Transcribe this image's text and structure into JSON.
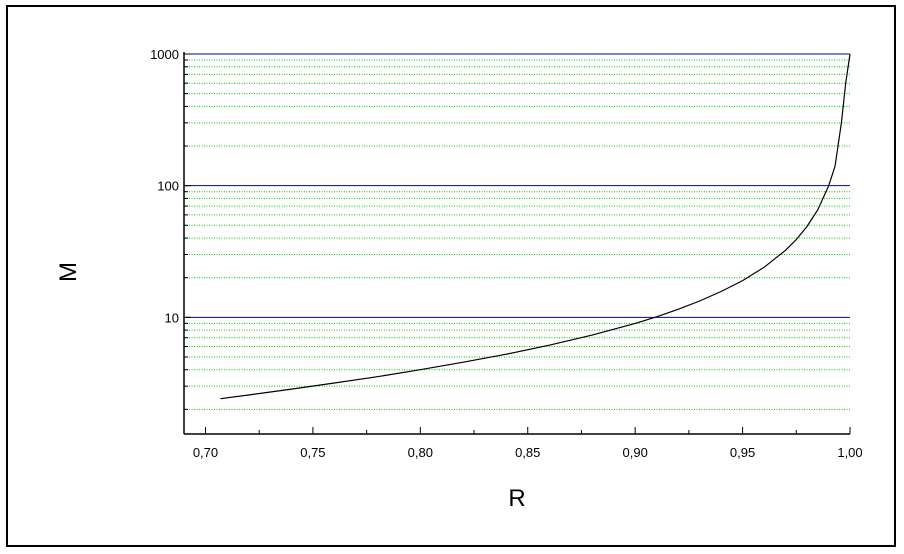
{
  "chart_data": {
    "type": "line",
    "title": "",
    "xlabel": "R",
    "ylabel": "M",
    "xlim": [
      0.69,
      1.0
    ],
    "ylim": [
      1.3,
      1000
    ],
    "yscale": "log",
    "x_ticks": [
      {
        "value": 0.7,
        "label": "0,70"
      },
      {
        "value": 0.75,
        "label": "0,75"
      },
      {
        "value": 0.8,
        "label": "0,80"
      },
      {
        "value": 0.85,
        "label": "0,85"
      },
      {
        "value": 0.9,
        "label": "0,90"
      },
      {
        "value": 0.95,
        "label": "0,95"
      },
      {
        "value": 1.0,
        "label": "1,00"
      }
    ],
    "y_ticks": [
      {
        "value": 10,
        "label": "10"
      },
      {
        "value": 100,
        "label": "100"
      },
      {
        "value": 1000,
        "label": "1000"
      }
    ],
    "grid": {
      "major": true,
      "minor": true,
      "major_color": "#0000aa",
      "minor_color": "#00cc00"
    },
    "legend": "none",
    "series": [
      {
        "color": "#000000",
        "x": [
          0.707,
          0.72,
          0.74,
          0.76,
          0.78,
          0.8,
          0.82,
          0.84,
          0.86,
          0.88,
          0.9,
          0.91,
          0.92,
          0.93,
          0.94,
          0.95,
          0.96,
          0.97,
          0.975,
          0.98,
          0.985,
          0.99,
          0.993,
          0.996,
          0.998,
          1.0
        ],
        "y": [
          2.41,
          2.57,
          2.85,
          3.17,
          3.54,
          4.0,
          4.56,
          5.25,
          6.14,
          7.33,
          9.0,
          10.1,
          11.5,
          13.3,
          15.7,
          19.0,
          24.0,
          32.3,
          39.0,
          49.0,
          65.7,
          99.0,
          140,
          300,
          600,
          1000
        ]
      }
    ]
  }
}
